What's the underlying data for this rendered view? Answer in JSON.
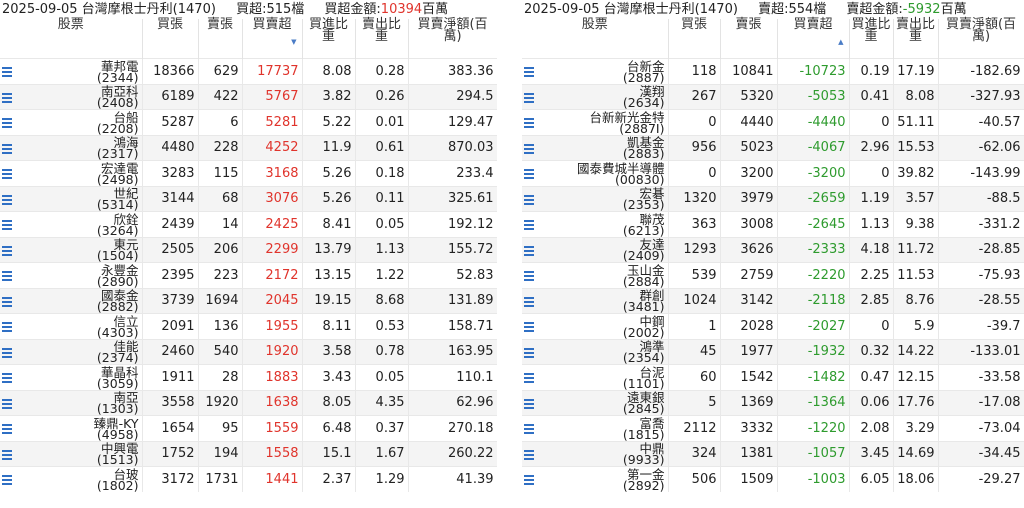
{
  "left": {
    "date_broker": "2025-09-05 台灣摩根士丹利(1470)",
    "count_label": "買超:515檔",
    "amount_prefix": "買超金額:",
    "amount_value": "10394",
    "amount_unit": "百萬",
    "headers": [
      "股票",
      "買張",
      "賣張",
      "買賣超",
      "買進比重",
      "賣出比重",
      "買賣淨額(百萬)"
    ],
    "sort_indicator": "▼",
    "rows": [
      {
        "name": "華邦電",
        "code": "(2344)",
        "buy": "18366",
        "sell": "629",
        "net": "17737",
        "buy_pct": "8.08",
        "sell_pct": "0.28",
        "amount": "383.36"
      },
      {
        "name": "南亞科",
        "code": "(2408)",
        "buy": "6189",
        "sell": "422",
        "net": "5767",
        "buy_pct": "3.82",
        "sell_pct": "0.26",
        "amount": "294.5"
      },
      {
        "name": "台船",
        "code": "(2208)",
        "buy": "5287",
        "sell": "6",
        "net": "5281",
        "buy_pct": "5.22",
        "sell_pct": "0.01",
        "amount": "129.47"
      },
      {
        "name": "鴻海",
        "code": "(2317)",
        "buy": "4480",
        "sell": "228",
        "net": "4252",
        "buy_pct": "11.9",
        "sell_pct": "0.61",
        "amount": "870.03"
      },
      {
        "name": "宏達電",
        "code": "(2498)",
        "buy": "3283",
        "sell": "115",
        "net": "3168",
        "buy_pct": "5.26",
        "sell_pct": "0.18",
        "amount": "233.4"
      },
      {
        "name": "世紀",
        "code": "(5314)",
        "buy": "3144",
        "sell": "68",
        "net": "3076",
        "buy_pct": "5.26",
        "sell_pct": "0.11",
        "amount": "325.61"
      },
      {
        "name": "欣銓",
        "code": "(3264)",
        "buy": "2439",
        "sell": "14",
        "net": "2425",
        "buy_pct": "8.41",
        "sell_pct": "0.05",
        "amount": "192.12"
      },
      {
        "name": "東元",
        "code": "(1504)",
        "buy": "2505",
        "sell": "206",
        "net": "2299",
        "buy_pct": "13.79",
        "sell_pct": "1.13",
        "amount": "155.72"
      },
      {
        "name": "永豐金",
        "code": "(2890)",
        "buy": "2395",
        "sell": "223",
        "net": "2172",
        "buy_pct": "13.15",
        "sell_pct": "1.22",
        "amount": "52.83"
      },
      {
        "name": "國泰金",
        "code": "(2882)",
        "buy": "3739",
        "sell": "1694",
        "net": "2045",
        "buy_pct": "19.15",
        "sell_pct": "8.68",
        "amount": "131.89"
      },
      {
        "name": "信立",
        "code": "(4303)",
        "buy": "2091",
        "sell": "136",
        "net": "1955",
        "buy_pct": "8.11",
        "sell_pct": "0.53",
        "amount": "158.71"
      },
      {
        "name": "佳能",
        "code": "(2374)",
        "buy": "2460",
        "sell": "540",
        "net": "1920",
        "buy_pct": "3.58",
        "sell_pct": "0.78",
        "amount": "163.95"
      },
      {
        "name": "華晶科",
        "code": "(3059)",
        "buy": "1911",
        "sell": "28",
        "net": "1883",
        "buy_pct": "3.43",
        "sell_pct": "0.05",
        "amount": "110.1"
      },
      {
        "name": "南亞",
        "code": "(1303)",
        "buy": "3558",
        "sell": "1920",
        "net": "1638",
        "buy_pct": "8.05",
        "sell_pct": "4.35",
        "amount": "62.96"
      },
      {
        "name": "臻鼎-KY",
        "code": "(4958)",
        "buy": "1654",
        "sell": "95",
        "net": "1559",
        "buy_pct": "6.48",
        "sell_pct": "0.37",
        "amount": "270.18"
      },
      {
        "name": "中興電",
        "code": "(1513)",
        "buy": "1752",
        "sell": "194",
        "net": "1558",
        "buy_pct": "15.1",
        "sell_pct": "1.67",
        "amount": "260.22"
      },
      {
        "name": "台玻",
        "code": "(1802)",
        "buy": "3172",
        "sell": "1731",
        "net": "1441",
        "buy_pct": "2.37",
        "sell_pct": "1.29",
        "amount": "41.39"
      }
    ]
  },
  "right": {
    "date_broker": "2025-09-05 台灣摩根士丹利(1470)",
    "count_label": "賣超:554檔",
    "amount_prefix": "賣超金額:",
    "amount_value": "-5932",
    "amount_unit": "百萬",
    "headers": [
      "股票",
      "買張",
      "賣張",
      "買賣超",
      "買進比重",
      "賣出比重",
      "買賣淨額(百萬)"
    ],
    "sort_indicator": "▲",
    "rows": [
      {
        "name": "台新金",
        "code": "(2887)",
        "buy": "118",
        "sell": "10841",
        "net": "-10723",
        "buy_pct": "0.19",
        "sell_pct": "17.19",
        "amount": "-182.69"
      },
      {
        "name": "漢翔",
        "code": "(2634)",
        "buy": "267",
        "sell": "5320",
        "net": "-5053",
        "buy_pct": "0.41",
        "sell_pct": "8.08",
        "amount": "-327.93"
      },
      {
        "name": "台新新光金特",
        "code": "(2887I)",
        "buy": "0",
        "sell": "4440",
        "net": "-4440",
        "buy_pct": "0",
        "sell_pct": "51.11",
        "amount": "-40.57"
      },
      {
        "name": "凱基金",
        "code": "(2883)",
        "buy": "956",
        "sell": "5023",
        "net": "-4067",
        "buy_pct": "2.96",
        "sell_pct": "15.53",
        "amount": "-62.06"
      },
      {
        "name": "國泰費城半導體",
        "code": "(00830)",
        "buy": "0",
        "sell": "3200",
        "net": "-3200",
        "buy_pct": "0",
        "sell_pct": "39.82",
        "amount": "-143.99"
      },
      {
        "name": "宏碁",
        "code": "(2353)",
        "buy": "1320",
        "sell": "3979",
        "net": "-2659",
        "buy_pct": "1.19",
        "sell_pct": "3.57",
        "amount": "-88.5"
      },
      {
        "name": "聯茂",
        "code": "(6213)",
        "buy": "363",
        "sell": "3008",
        "net": "-2645",
        "buy_pct": "1.13",
        "sell_pct": "9.38",
        "amount": "-331.2"
      },
      {
        "name": "友達",
        "code": "(2409)",
        "buy": "1293",
        "sell": "3626",
        "net": "-2333",
        "buy_pct": "4.18",
        "sell_pct": "11.72",
        "amount": "-28.85"
      },
      {
        "name": "玉山金",
        "code": "(2884)",
        "buy": "539",
        "sell": "2759",
        "net": "-2220",
        "buy_pct": "2.25",
        "sell_pct": "11.53",
        "amount": "-75.93"
      },
      {
        "name": "群創",
        "code": "(3481)",
        "buy": "1024",
        "sell": "3142",
        "net": "-2118",
        "buy_pct": "2.85",
        "sell_pct": "8.76",
        "amount": "-28.55"
      },
      {
        "name": "中鋼",
        "code": "(2002)",
        "buy": "1",
        "sell": "2028",
        "net": "-2027",
        "buy_pct": "0",
        "sell_pct": "5.9",
        "amount": "-39.7"
      },
      {
        "name": "鴻準",
        "code": "(2354)",
        "buy": "45",
        "sell": "1977",
        "net": "-1932",
        "buy_pct": "0.32",
        "sell_pct": "14.22",
        "amount": "-133.01"
      },
      {
        "name": "台泥",
        "code": "(1101)",
        "buy": "60",
        "sell": "1542",
        "net": "-1482",
        "buy_pct": "0.47",
        "sell_pct": "12.15",
        "amount": "-33.58"
      },
      {
        "name": "遠東銀",
        "code": "(2845)",
        "buy": "5",
        "sell": "1369",
        "net": "-1364",
        "buy_pct": "0.06",
        "sell_pct": "17.76",
        "amount": "-17.08"
      },
      {
        "name": "富喬",
        "code": "(1815)",
        "buy": "2112",
        "sell": "3332",
        "net": "-1220",
        "buy_pct": "2.08",
        "sell_pct": "3.29",
        "amount": "-73.04"
      },
      {
        "name": "中鼎",
        "code": "(9933)",
        "buy": "324",
        "sell": "1381",
        "net": "-1057",
        "buy_pct": "3.45",
        "sell_pct": "14.69",
        "amount": "-34.45"
      },
      {
        "name": "第一金",
        "code": "(2892)",
        "buy": "506",
        "sell": "1509",
        "net": "-1003",
        "buy_pct": "6.05",
        "sell_pct": "18.06",
        "amount": "-29.27"
      }
    ]
  },
  "colors": {
    "positive": "#e0342c",
    "negative": "#2e9b2e",
    "menu_icon": "#2f6fc4",
    "sort_arrow": "#4a7cc6"
  },
  "icons": {
    "row_menu": "list-menu-icon"
  }
}
